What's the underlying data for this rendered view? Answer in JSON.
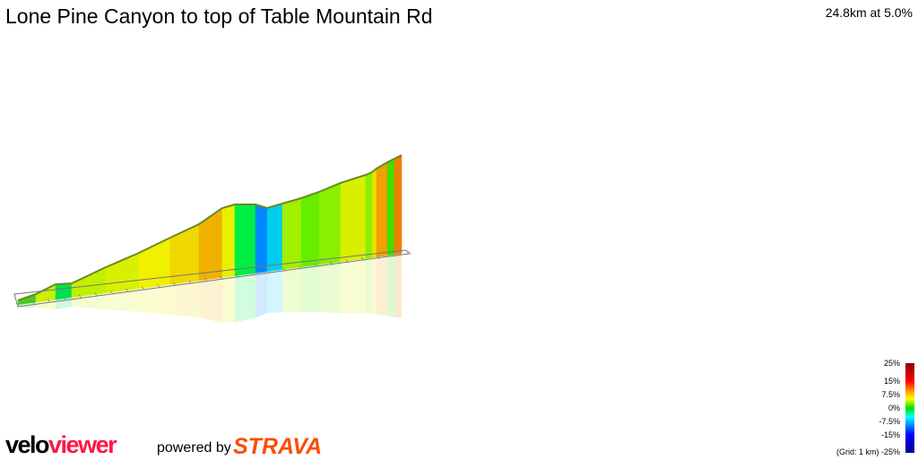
{
  "title": "Lone Pine Canyon to top of Table Mountain Rd",
  "summary": "24.8km at 5.0%",
  "profile": {
    "segment_colors": [
      "#44cc22",
      "#c8f000",
      "#00e050",
      "#c0f000",
      "#d8f000",
      "#f0f000",
      "#f0d800",
      "#f0b000",
      "#e8f000",
      "#00ee44",
      "#0088ff",
      "#00ccee",
      "#a0f000",
      "#66ee00",
      "#88f000",
      "#d8f000",
      "#88f000",
      "#e8e000",
      "#f0a000",
      "#44dd00",
      "#f08000",
      "#f0e800",
      "#a8f000"
    ]
  },
  "legend": {
    "labels": [
      "25%",
      "15%",
      "7.5%",
      "0%",
      "-7.5%",
      "-15%",
      "-25%"
    ],
    "grid_note": "(Grid: 1 km)"
  },
  "branding": {
    "logo_part1": "velo",
    "logo_part2": "viewer",
    "powered_by": "powered by",
    "strava": "STRAVA"
  }
}
